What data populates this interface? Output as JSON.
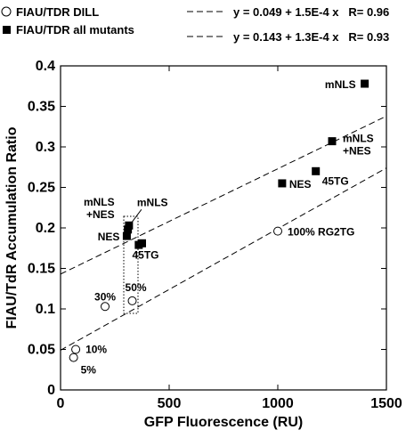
{
  "chart_data": {
    "type": "scatter",
    "xlabel": "GFP Fluorescence (RU)",
    "ylabel": "FIAU/TdR Accumulation Ratio",
    "xlim": [
      0,
      1500
    ],
    "ylim": [
      0,
      0.4
    ],
    "xticks": [
      0,
      500,
      1000,
      1500
    ],
    "yticks": [
      0,
      0.05,
      0.1,
      0.15,
      0.2,
      0.25,
      0.3,
      0.35,
      0.4
    ],
    "xtick_labels": [
      "0",
      "500",
      "1000",
      "1500"
    ],
    "ytick_labels": [
      "0",
      "0.05",
      "0.1",
      "0.15",
      "0.2",
      "0.25",
      "0.3",
      "0.35",
      "0.4"
    ],
    "legend_position": "top",
    "series": [
      {
        "name": "FIAU/TDR DILL",
        "marker": "open-circle",
        "points": [
          {
            "x": 60,
            "y": 0.04,
            "label": "5%"
          },
          {
            "x": 70,
            "y": 0.05,
            "label": "10%"
          },
          {
            "x": 205,
            "y": 0.103,
            "label": "30%"
          },
          {
            "x": 330,
            "y": 0.11,
            "label": "50%"
          },
          {
            "x": 1000,
            "y": 0.196,
            "label": "100% RG2TG"
          }
        ],
        "fit_label": "y = 0.049 + 1.5E-4 x   R= 0.96",
        "fit": {
          "intercept": 0.049,
          "slope": 0.00015
        }
      },
      {
        "name": "FIAU/TDR all mutants",
        "marker": "filled-square",
        "points": [
          {
            "x": 305,
            "y": 0.19,
            "label": "NES"
          },
          {
            "x": 310,
            "y": 0.198,
            "label": "mNLS +NES"
          },
          {
            "x": 315,
            "y": 0.203,
            "label": "mNLS"
          },
          {
            "x": 360,
            "y": 0.179,
            "label": ""
          },
          {
            "x": 375,
            "y": 0.181,
            "label": "45TG"
          },
          {
            "x": 1020,
            "y": 0.255,
            "label": "NES"
          },
          {
            "x": 1175,
            "y": 0.27,
            "label": "45TG"
          },
          {
            "x": 1250,
            "y": 0.307,
            "label": "mNLS +NES"
          },
          {
            "x": 1400,
            "y": 0.378,
            "label": "mNLS"
          }
        ],
        "fit_label": "y = 0.143 + 1.3E-4 x   R= 0.93",
        "fit": {
          "intercept": 0.143,
          "slope": 0.00013
        }
      }
    ]
  }
}
